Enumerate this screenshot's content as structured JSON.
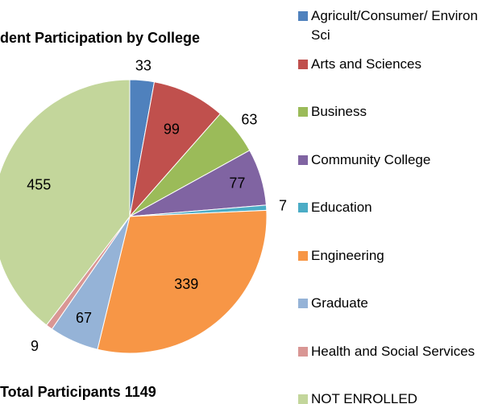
{
  "chart_data": {
    "type": "pie",
    "title": "dent Participation by College",
    "annotation": "Total Participants 1149",
    "categories": [
      "Agricult/Consumer/ Environ Sci",
      "Arts and Sciences",
      "Business",
      "Community College",
      "Education",
      "Engineering",
      "Graduate",
      "Health and Social Services",
      "NOT ENROLLED"
    ],
    "values": [
      33,
      99,
      63,
      77,
      7,
      339,
      67,
      9,
      455
    ],
    "colors": [
      "#4f81bd",
      "#c0504d",
      "#9bbb59",
      "#8064a2",
      "#4bacc6",
      "#f79646",
      "#95b3d7",
      "#d99694",
      "#c3d69b"
    ],
    "legend": "right"
  }
}
